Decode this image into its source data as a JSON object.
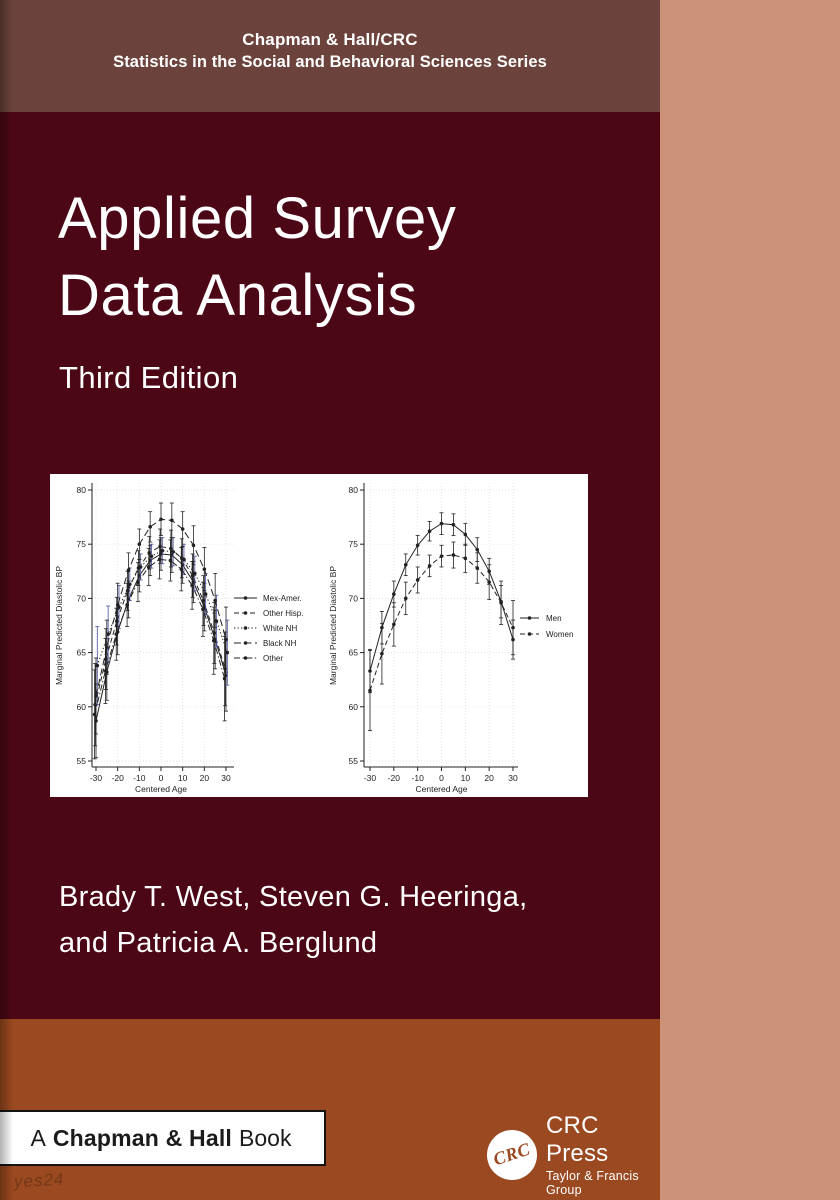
{
  "header": {
    "line1": "Chapman & Hall/CRC",
    "line2": "Statistics in the Social and Behavioral Sciences Series"
  },
  "title": {
    "line1": "Applied Survey",
    "line2": "Data Analysis",
    "edition": "Third Edition"
  },
  "authors": {
    "line1": "Brady T. West, Steven G. Heeringa,",
    "line2": "and Patricia A. Berglund"
  },
  "footer": {
    "book_label": {
      "prefix": "A",
      "bold": "Chapman & Hall",
      "suffix": "Book"
    },
    "publisher": {
      "logo_text": "CRC",
      "name": "CRC Press",
      "tagline": "Taylor & Francis Group"
    },
    "watermark": "yes24"
  },
  "colors": {
    "maroon": "#4C0716",
    "header_brown": "#6C433C",
    "sienna_band": "#9A4920",
    "tan_strip": "#CB9278",
    "panel_white": "#ffffff",
    "ink": "#222222",
    "grid": "#d9d9d9",
    "white_nh_ci": "#4a4f9e"
  },
  "chart_data": [
    {
      "type": "line",
      "title": "",
      "xlabel": "Centered Age",
      "ylabel": "Marginal Predicted Diastolic BP",
      "xlim": [
        -30,
        30
      ],
      "ylim": [
        55,
        80
      ],
      "xticks": [
        -30,
        -20,
        -10,
        0,
        10,
        20,
        30
      ],
      "yticks": [
        55,
        60,
        65,
        70,
        75,
        80
      ],
      "grid": true,
      "error_bars": true,
      "legend_position": "right",
      "x": [
        -30,
        -25,
        -20,
        -15,
        -10,
        -5,
        0,
        5,
        10,
        15,
        20,
        25,
        30
      ],
      "series": [
        {
          "name": "Mex-Amer.",
          "dash": "solid",
          "values": [
            58.7,
            63.2,
            66.9,
            69.9,
            72.1,
            73.5,
            74.1,
            74.0,
            73.1,
            71.5,
            69.2,
            66.2,
            62.9
          ],
          "ci": [
            3.4,
            2.6,
            2.1,
            1.7,
            1.5,
            1.4,
            1.5,
            1.6,
            1.7,
            1.9,
            2.2,
            2.7,
            3.3
          ]
        },
        {
          "name": "Other Hisp.",
          "dash": "dash",
          "values": [
            60.2,
            64.4,
            67.9,
            70.7,
            72.8,
            74.2,
            74.8,
            74.6,
            73.7,
            72.1,
            69.8,
            66.8,
            63.5
          ],
          "ci": [
            3.8,
            2.8,
            2.2,
            1.8,
            1.6,
            1.5,
            1.6,
            1.7,
            1.8,
            2.0,
            2.3,
            2.8,
            3.4
          ]
        },
        {
          "name": "White NH",
          "dash": "dot",
          "ci_color": "#4a4f9e",
          "values": [
            63.8,
            66.7,
            69.2,
            71.3,
            72.9,
            73.9,
            74.4,
            74.3,
            73.6,
            72.3,
            70.4,
            67.9,
            65.0
          ],
          "ci": [
            3.6,
            2.6,
            2.0,
            1.5,
            1.2,
            1.1,
            1.2,
            1.3,
            1.4,
            1.6,
            1.9,
            2.4,
            3.0
          ]
        },
        {
          "name": "Black NH",
          "dash": "longdash",
          "values": [
            61.0,
            65.5,
            69.4,
            72.6,
            75.0,
            76.6,
            77.3,
            77.2,
            76.4,
            74.9,
            72.7,
            69.8,
            66.2
          ],
          "ci": [
            3.5,
            2.5,
            2.0,
            1.6,
            1.4,
            1.4,
            1.5,
            1.6,
            1.6,
            1.8,
            2.0,
            2.5,
            3.0
          ]
        },
        {
          "name": "Other",
          "dash": "dashdot",
          "values": [
            59.3,
            63.3,
            66.7,
            69.4,
            71.5,
            72.9,
            73.6,
            73.5,
            72.7,
            71.2,
            69.0,
            66.1,
            62.6
          ],
          "ci": [
            4.1,
            3.0,
            2.4,
            2.0,
            1.8,
            1.7,
            1.8,
            1.9,
            2.0,
            2.2,
            2.5,
            3.1,
            3.9
          ]
        }
      ]
    },
    {
      "type": "line",
      "title": "",
      "xlabel": "Centered Age",
      "ylabel": "Marginal Predicted Diastolic BP",
      "xlim": [
        -30,
        30
      ],
      "ylim": [
        55,
        80
      ],
      "xticks": [
        -30,
        -20,
        -10,
        0,
        10,
        20,
        30
      ],
      "yticks": [
        55,
        60,
        65,
        70,
        75,
        80
      ],
      "grid": true,
      "error_bars": true,
      "legend_position": "right",
      "x": [
        -30,
        -25,
        -20,
        -15,
        -10,
        -5,
        0,
        5,
        10,
        15,
        20,
        25,
        30
      ],
      "series": [
        {
          "name": "Men",
          "dash": "solid",
          "values": [
            63.3,
            67.3,
            70.4,
            73.1,
            74.9,
            76.2,
            76.9,
            76.8,
            75.9,
            74.5,
            72.5,
            69.7,
            66.2
          ],
          "ci": [
            2.0,
            1.5,
            1.2,
            1.0,
            0.9,
            0.9,
            1.0,
            1.0,
            1.0,
            1.1,
            1.2,
            1.5,
            1.8
          ]
        },
        {
          "name": "Women",
          "dash": "dash",
          "values": [
            61.5,
            64.9,
            67.6,
            70.0,
            71.7,
            73.0,
            73.9,
            74.0,
            73.7,
            72.8,
            71.5,
            69.6,
            67.3
          ],
          "ci": [
            3.7,
            2.8,
            2.0,
            1.5,
            1.2,
            1.0,
            1.0,
            1.2,
            1.3,
            1.4,
            1.6,
            2.0,
            2.5
          ]
        }
      ]
    }
  ]
}
